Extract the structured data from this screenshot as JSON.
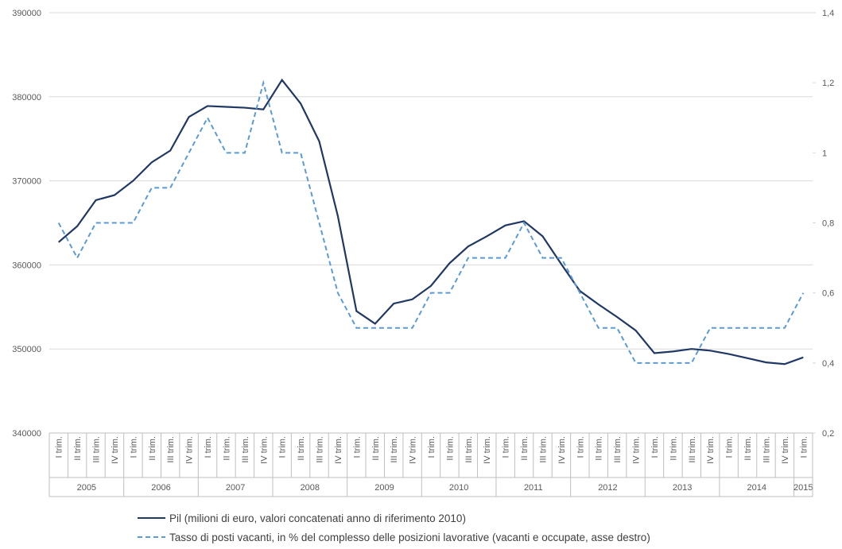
{
  "chart_data": {
    "type": "line",
    "categories": [
      "I trim.",
      "II trim.",
      "III trim.",
      "IV trim.",
      "I trim.",
      "II trim.",
      "III trim.",
      "IV trim.",
      "I trim.",
      "II trim.",
      "III trim.",
      "IV trim.",
      "I trim.",
      "II trim.",
      "III trim.",
      "IV trim.",
      "I trim.",
      "II trim.",
      "III trim.",
      "IV trim.",
      "I trim.",
      "II trim.",
      "III trim.",
      "IV trim.",
      "I trim.",
      "II trim.",
      "III trim.",
      "IV trim.",
      "I trim.",
      "II trim.",
      "III trim.",
      "IV trim.",
      "I trim.",
      "II trim.",
      "III trim.",
      "IV trim.",
      "I trim.",
      "II trim.",
      "III trim.",
      "IV trim.",
      "I trim."
    ],
    "category_groups": [
      "2005",
      "2006",
      "2007",
      "2008",
      "2009",
      "2010",
      "2011",
      "2012",
      "2013",
      "2014",
      "2015"
    ],
    "series": [
      {
        "name": "Pil (milioni di euro, valori concatenati anno di riferimento 2010)",
        "color": "#203864",
        "dash": false,
        "values": [
          362700,
          364600,
          367700,
          368300,
          370000,
          372200,
          373600,
          377600,
          378900,
          378800,
          378700,
          378500,
          382000,
          379200,
          374700,
          365800,
          354500,
          353000,
          355400,
          355900,
          357500,
          360200,
          362200,
          363400,
          364700,
          365200,
          363400,
          360100,
          356900,
          355300,
          353800,
          352200,
          349500,
          349700,
          350000,
          349800,
          349400,
          348900,
          348400,
          348200,
          349000
        ]
      },
      {
        "name": "Tasso di posti vacanti, in % del complesso delle posizioni lavorative (vacanti e occupate, asse destro)",
        "color": "#5b9bd5",
        "dash": true,
        "axis": "y2",
        "values": [
          0.8,
          0.7,
          0.8,
          0.8,
          0.8,
          0.9,
          0.9,
          1.0,
          1.1,
          1.0,
          1.0,
          1.2,
          1.0,
          1.0,
          0.8,
          0.6,
          0.5,
          0.5,
          0.5,
          0.5,
          0.6,
          0.6,
          0.7,
          0.7,
          0.7,
          0.8,
          0.7,
          0.7,
          0.6,
          0.5,
          0.5,
          0.4,
          0.4,
          0.4,
          0.4,
          0.5,
          0.5,
          0.5,
          0.5,
          0.5,
          0.6
        ]
      }
    ],
    "ylim": [
      340000,
      390000
    ],
    "yticks": [
      340000,
      350000,
      360000,
      370000,
      380000,
      390000
    ],
    "y2lim": [
      0.2,
      1.4
    ],
    "y2ticks": [
      {
        "value": 0.2,
        "label": "0,2"
      },
      {
        "value": 0.4,
        "label": "0,4"
      },
      {
        "value": 0.6,
        "label": "0,6"
      },
      {
        "value": 0.8,
        "label": "0,8"
      },
      1,
      {
        "value": 1.2,
        "label": "1,2"
      },
      {
        "value": 1.4,
        "label": "1,4"
      }
    ],
    "grid": true
  }
}
